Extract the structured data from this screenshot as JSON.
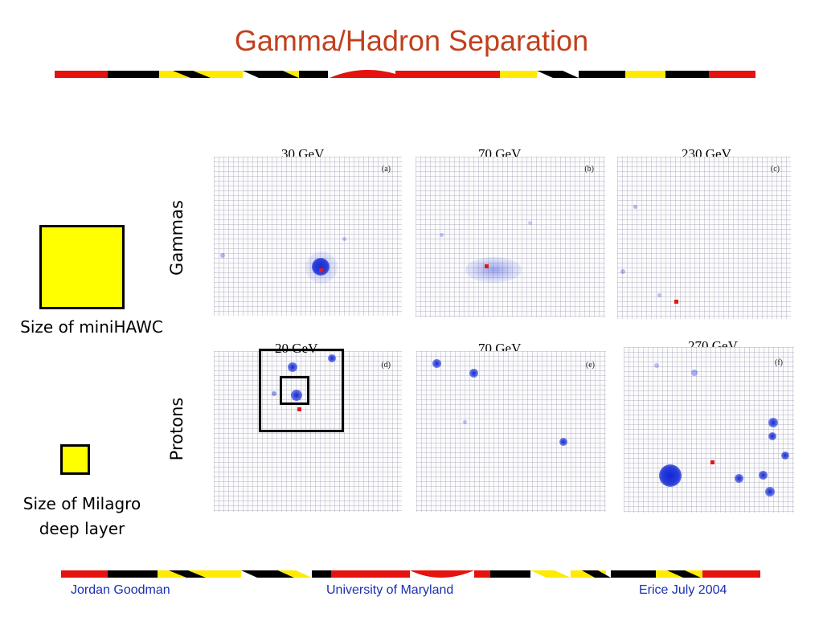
{
  "title": "Gamma/Hadron Separation",
  "colors": {
    "title": "#c0401c",
    "stripe_red": "#e5120f",
    "stripe_yellow": "#ffea00",
    "stripe_black": "#000000",
    "footer_text": "#1a2fb0",
    "legend_fill": "#ffff00",
    "hit_blue": "#2a3fd8",
    "source_red": "#e01818"
  },
  "rows": {
    "gammas_label": "Gammas",
    "protons_label": "Protons"
  },
  "panels": [
    {
      "tag": "(a)",
      "energy": "30 GeV"
    },
    {
      "tag": "(b)",
      "energy": "70 GeV"
    },
    {
      "tag": "(c)",
      "energy": "230 GeV"
    },
    {
      "tag": "(d)",
      "energy": "20 GeV"
    },
    {
      "tag": "(e)",
      "energy": "70 GeV"
    },
    {
      "tag": "(f)",
      "energy": "270 GeV"
    }
  ],
  "legend": {
    "minihawc_label": "Size of miniHAWC",
    "milagro_label_line1": "Size of Milagro",
    "milagro_label_line2": "deep layer"
  },
  "footer": {
    "author": "Jordan Goodman",
    "institution": "University of Maryland",
    "event": "Erice July 2004"
  }
}
